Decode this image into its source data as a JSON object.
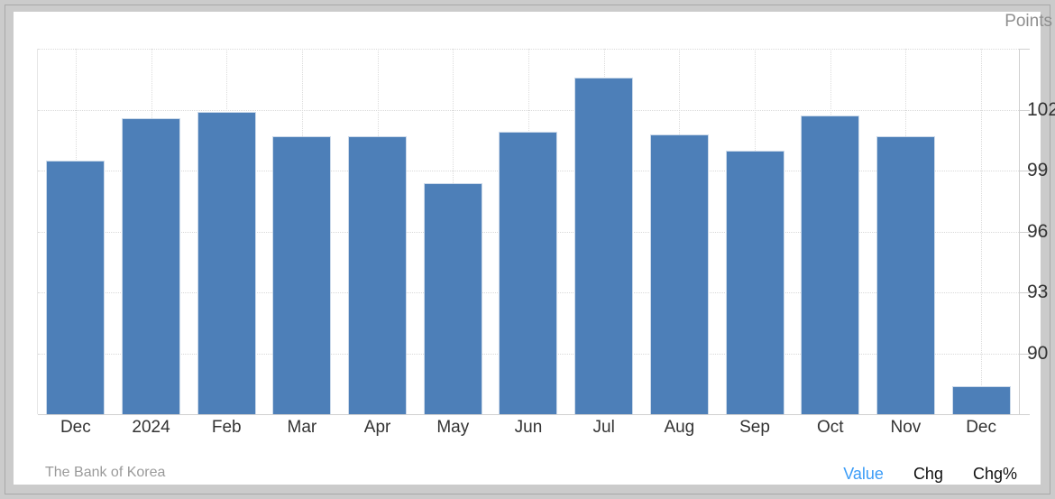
{
  "header": {
    "unit_label": "Points"
  },
  "footer": {
    "source": "The Bank of Korea",
    "links": [
      {
        "id": "value",
        "label": "Value",
        "active": true
      },
      {
        "id": "chg",
        "label": "Chg",
        "active": false
      },
      {
        "id": "chgpct",
        "label": "Chg%",
        "active": false
      }
    ]
  },
  "colors": {
    "bar": "#4d7fb8",
    "bar_edge": "#ccdaea",
    "active_link": "#3b9cf7",
    "inactive_link": "#111111",
    "axis_text": "#333333",
    "muted_text": "#8f8f8f",
    "grid": "#d9d9d9",
    "axis_line": "#d0d0d0",
    "frame_bg": "#cbcbcb",
    "panel_bg": "#ffffff"
  },
  "chart_data": {
    "type": "bar",
    "title": "",
    "unit": "Points",
    "categories": [
      "Dec",
      "2024",
      "Feb",
      "Mar",
      "Apr",
      "May",
      "Jun",
      "Jul",
      "Aug",
      "Sep",
      "Oct",
      "Nov",
      "Dec"
    ],
    "values": [
      99.5,
      101.6,
      101.9,
      100.7,
      100.7,
      98.4,
      100.9,
      103.6,
      100.8,
      100.0,
      101.7,
      100.7,
      88.4
    ],
    "xlabel": "",
    "ylabel": "Points",
    "ylim": [
      87,
      105
    ],
    "ytick_interval": 3,
    "yticks_labeled": [
      102,
      99,
      96,
      93,
      90
    ],
    "gridlines_y": [
      105,
      102,
      99,
      96,
      93,
      90
    ],
    "grid_style": "dotted",
    "grid_vertical_at_bar_centers": true,
    "legend": null,
    "source": "The Bank of Korea"
  }
}
